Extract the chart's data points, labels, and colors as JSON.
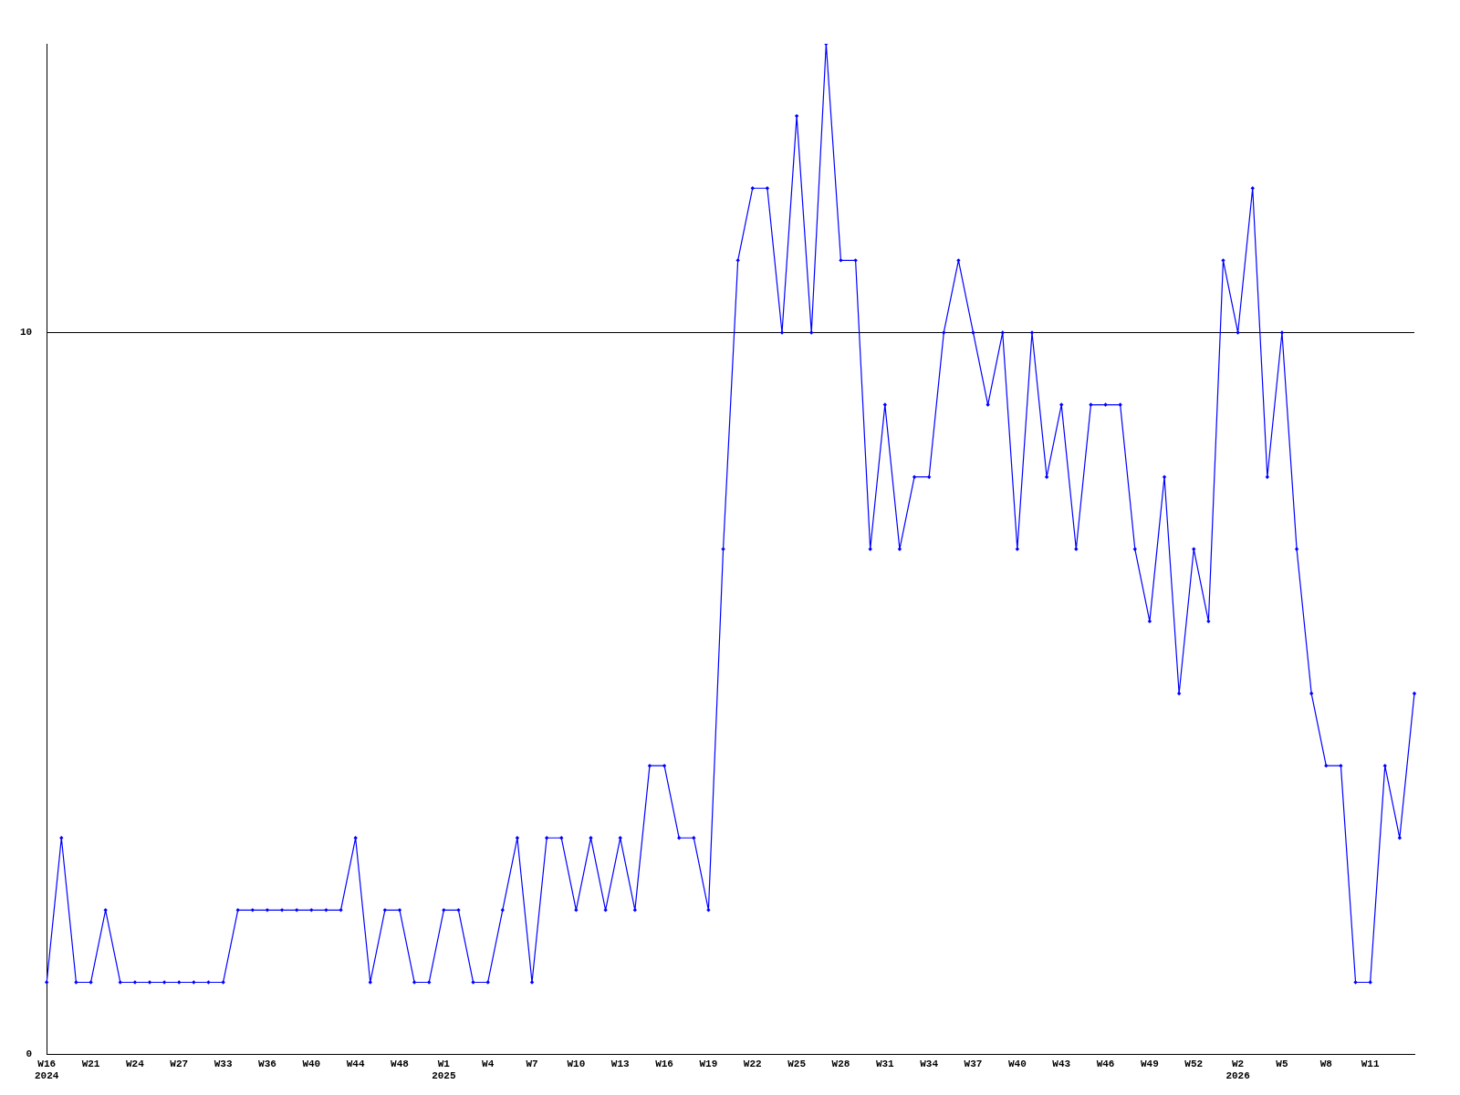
{
  "chart_data": {
    "type": "line",
    "categories": [
      "W16\n2024",
      null,
      null,
      "W21",
      null,
      null,
      "W24",
      null,
      null,
      "W27",
      null,
      null,
      "W33",
      null,
      null,
      "W36",
      null,
      null,
      "W40",
      null,
      null,
      "W44",
      null,
      null,
      "W48",
      null,
      null,
      "W1\n2025",
      null,
      null,
      "W4",
      null,
      null,
      "W7",
      null,
      null,
      "W10",
      null,
      null,
      "W13",
      null,
      null,
      "W16",
      null,
      null,
      "W19",
      null,
      null,
      "W22",
      null,
      null,
      "W25",
      null,
      null,
      "W28",
      null,
      null,
      "W31",
      null,
      null,
      "W34",
      null,
      null,
      "W37",
      null,
      null,
      "W40",
      null,
      null,
      "W43",
      null,
      null,
      "W46",
      null,
      null,
      "W49",
      null,
      null,
      "W52",
      null,
      null,
      "W2\n2026",
      null,
      null,
      "W5",
      null,
      null,
      "W8",
      null,
      null,
      "W11",
      null,
      null,
      null
    ],
    "series": [
      {
        "color": "#0000ff",
        "values": [
          1,
          3,
          1,
          1,
          2,
          1,
          1,
          1,
          1,
          1,
          1,
          1,
          1,
          2,
          2,
          2,
          2,
          2,
          2,
          2,
          2,
          3,
          1,
          2,
          2,
          1,
          1,
          2,
          2,
          1,
          1,
          2,
          3,
          1,
          3,
          3,
          2,
          3,
          2,
          3,
          2,
          4,
          4,
          3,
          3,
          2,
          7,
          11,
          12,
          12,
          10,
          13,
          10,
          14,
          11,
          11,
          7,
          9,
          7,
          8,
          8,
          10,
          11,
          10,
          9,
          10,
          7,
          10,
          8,
          9,
          7,
          9,
          9,
          9,
          7,
          6,
          8,
          5,
          7,
          6,
          11,
          10,
          12,
          8,
          10,
          7,
          5,
          4,
          4,
          1,
          1,
          4,
          3,
          5
        ]
      }
    ],
    "ylim": [
      0,
      14
    ],
    "yticks": [
      0,
      10
    ],
    "grid": "y",
    "legend": false,
    "marker": "diamond",
    "line_style": "solid"
  }
}
